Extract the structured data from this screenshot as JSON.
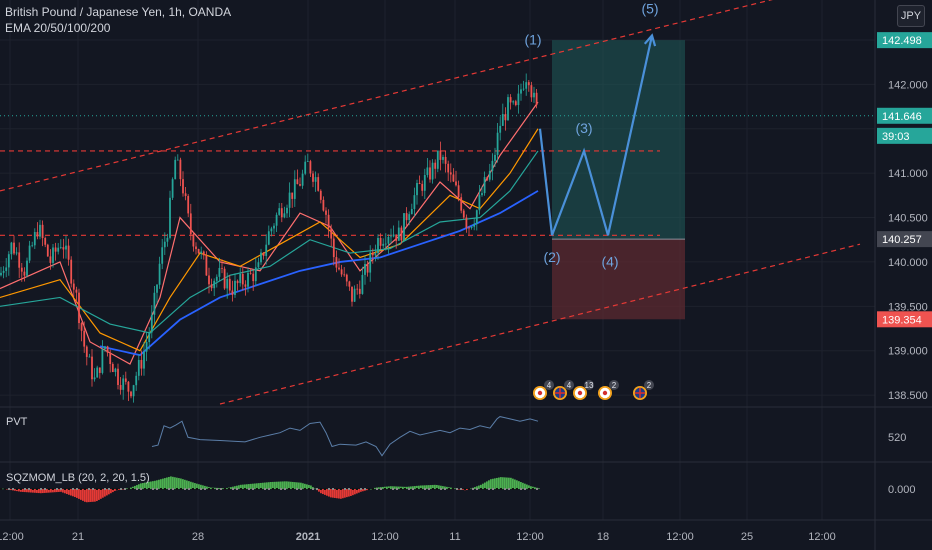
{
  "header": {
    "symbol_title": "British Pound / Japanese Yen, 1h, OANDA",
    "indicator_label": "EMA 20/50/100/200",
    "currency": "JPY"
  },
  "colors": {
    "background": "#131722",
    "grid": "#1e222d",
    "text": "#b2b5be",
    "up_candle": "#26a69a",
    "down_candle": "#ef5350",
    "wave_path": "#4a90d9",
    "channel": "#e53935",
    "ema20": "#ff6f6f",
    "ema50": "#ff9800",
    "ema100": "#26a69a",
    "ema200": "#2962ff",
    "target_zone": "#1f5b5a",
    "stop_zone": "#5c2a30",
    "pvt_line": "#5b7ea8",
    "mom_pos": "#4caf50",
    "mom_neg": "#e53935"
  },
  "chart_data": {
    "type": "candlestick",
    "title": "British Pound / Japanese Yen, 1h, OANDA",
    "y_axis": {
      "ticks": [
        138.5,
        139.0,
        139.5,
        140.0,
        140.5,
        141.0,
        141.5,
        142.0,
        142.5
      ],
      "tick_labels": [
        "138.500",
        "139.000",
        "139.500",
        "140.000",
        "140.500",
        "141.000",
        "",
        "142.000",
        ""
      ],
      "range": [
        138.4,
        142.95
      ]
    },
    "x_axis": {
      "tick_labels": [
        "12:00",
        "21",
        "28",
        "2021",
        "12:00",
        "11",
        "12:00",
        "18",
        "12:00",
        "25",
        "12:00"
      ]
    },
    "price_tags": [
      {
        "label": "142.498",
        "value": 142.498,
        "color": "#26a69a"
      },
      {
        "label": "141.646",
        "value": 141.646,
        "color": "#26a69a"
      },
      {
        "label": "39:03",
        "value": 141.42,
        "color": "#26a69a"
      },
      {
        "label": "140.257",
        "value": 140.257,
        "color": "#434651"
      },
      {
        "label": "139.354",
        "value": 139.354,
        "color": "#ef5350"
      }
    ],
    "current_price": 141.646,
    "price_path": [
      [
        0,
        139.85
      ],
      [
        12,
        140.2
      ],
      [
        25,
        139.9
      ],
      [
        38,
        140.4
      ],
      [
        50,
        140.0
      ],
      [
        62,
        140.25
      ],
      [
        75,
        139.7
      ],
      [
        85,
        139.0
      ],
      [
        95,
        138.65
      ],
      [
        105,
        139.05
      ],
      [
        118,
        138.7
      ],
      [
        130,
        138.55
      ],
      [
        142,
        138.9
      ],
      [
        152,
        139.35
      ],
      [
        160,
        140.0
      ],
      [
        168,
        140.4
      ],
      [
        175,
        141.15
      ],
      [
        182,
        140.9
      ],
      [
        190,
        140.35
      ],
      [
        200,
        140.1
      ],
      [
        210,
        139.8
      ],
      [
        220,
        139.85
      ],
      [
        232,
        139.7
      ],
      [
        245,
        139.8
      ],
      [
        258,
        139.9
      ],
      [
        268,
        140.3
      ],
      [
        278,
        140.55
      ],
      [
        290,
        140.75
      ],
      [
        300,
        140.9
      ],
      [
        308,
        141.1
      ],
      [
        318,
        140.9
      ],
      [
        326,
        140.55
      ],
      [
        334,
        140.05
      ],
      [
        342,
        139.85
      ],
      [
        352,
        139.6
      ],
      [
        360,
        139.75
      ],
      [
        368,
        139.95
      ],
      [
        378,
        140.25
      ],
      [
        390,
        140.35
      ],
      [
        400,
        140.3
      ],
      [
        410,
        140.65
      ],
      [
        420,
        140.85
      ],
      [
        430,
        141.0
      ],
      [
        440,
        141.2
      ],
      [
        450,
        140.95
      ],
      [
        460,
        140.7
      ],
      [
        468,
        140.4
      ],
      [
        476,
        140.55
      ],
      [
        484,
        140.85
      ],
      [
        492,
        141.05
      ],
      [
        500,
        141.55
      ],
      [
        508,
        141.75
      ],
      [
        516,
        141.7
      ],
      [
        522,
        142.0
      ],
      [
        528,
        142.15
      ],
      [
        532,
        141.9
      ],
      [
        538,
        141.65
      ]
    ],
    "ema_lines": [
      {
        "name": "EMA 20",
        "color": "#ff6f6f",
        "points": [
          [
            0,
            139.7
          ],
          [
            60,
            140.0
          ],
          [
            90,
            139.1
          ],
          [
            130,
            138.85
          ],
          [
            160,
            139.6
          ],
          [
            180,
            140.5
          ],
          [
            220,
            140.0
          ],
          [
            260,
            139.9
          ],
          [
            300,
            140.55
          ],
          [
            330,
            140.4
          ],
          [
            360,
            139.9
          ],
          [
            400,
            140.3
          ],
          [
            440,
            140.9
          ],
          [
            470,
            140.6
          ],
          [
            500,
            141.2
          ],
          [
            538,
            141.8
          ]
        ]
      },
      {
        "name": "EMA 50",
        "color": "#ff9800",
        "points": [
          [
            0,
            139.6
          ],
          [
            60,
            139.8
          ],
          [
            100,
            139.2
          ],
          [
            140,
            139.0
          ],
          [
            170,
            139.6
          ],
          [
            200,
            140.1
          ],
          [
            240,
            139.95
          ],
          [
            280,
            140.2
          ],
          [
            320,
            140.45
          ],
          [
            360,
            140.05
          ],
          [
            400,
            140.2
          ],
          [
            450,
            140.75
          ],
          [
            480,
            140.6
          ],
          [
            510,
            141.0
          ],
          [
            538,
            141.5
          ]
        ]
      },
      {
        "name": "EMA 100",
        "color": "#26a69a",
        "points": [
          [
            0,
            139.5
          ],
          [
            60,
            139.6
          ],
          [
            110,
            139.3
          ],
          [
            150,
            139.2
          ],
          [
            190,
            139.6
          ],
          [
            230,
            139.85
          ],
          [
            270,
            139.95
          ],
          [
            310,
            140.25
          ],
          [
            350,
            140.1
          ],
          [
            390,
            140.15
          ],
          [
            440,
            140.45
          ],
          [
            480,
            140.5
          ],
          [
            510,
            140.8
          ],
          [
            538,
            141.25
          ]
        ]
      },
      {
        "name": "EMA 200",
        "color": "#2962ff",
        "points": [
          [
            100,
            139.05
          ],
          [
            140,
            138.95
          ],
          [
            180,
            139.35
          ],
          [
            220,
            139.6
          ],
          [
            260,
            139.75
          ],
          [
            300,
            139.9
          ],
          [
            340,
            140.0
          ],
          [
            380,
            140.05
          ],
          [
            420,
            140.2
          ],
          [
            460,
            140.35
          ],
          [
            500,
            140.55
          ],
          [
            538,
            140.8
          ]
        ]
      }
    ],
    "horizontal_lines": [
      {
        "value": 141.25,
        "style": "dashed"
      },
      {
        "value": 140.3,
        "style": "dashed"
      }
    ],
    "channel_lines": [
      {
        "from": [
          0,
          140.8
        ],
        "to": [
          860,
          143.2
        ]
      },
      {
        "from": [
          220,
          138.4
        ],
        "to": [
          860,
          140.2
        ]
      }
    ],
    "position_tool": {
      "entry": 140.257,
      "target": 142.498,
      "stop": 139.354,
      "x_start": 552,
      "x_end": 685
    },
    "wave_path": {
      "points": [
        [
          540,
          141.5
        ],
        [
          552,
          140.3
        ],
        [
          584,
          141.25
        ],
        [
          608,
          140.3
        ],
        [
          652,
          142.55
        ]
      ],
      "labels": [
        {
          "text": "(1)",
          "x": 533,
          "y": 142.45
        },
        {
          "text": "(2)",
          "x": 552,
          "y": 140.0
        },
        {
          "text": "(3)",
          "x": 584,
          "y": 141.45
        },
        {
          "text": "(4)",
          "x": 610,
          "y": 139.95
        },
        {
          "text": "(5)",
          "x": 650,
          "y": 142.8
        }
      ]
    },
    "events": [
      {
        "flag": "jp",
        "count": "4",
        "x": 540
      },
      {
        "flag": "uk",
        "count": "4",
        "x": 560
      },
      {
        "flag": "jp",
        "count": "13",
        "x": 580
      },
      {
        "flag": "jp",
        "count": "2",
        "x": 605
      },
      {
        "flag": "uk",
        "count": "2",
        "x": 640
      }
    ],
    "pvt": {
      "label": "PVT",
      "axis_label": "520",
      "points": [
        [
          152,
          0.75
        ],
        [
          158,
          0.72
        ],
        [
          164,
          0.3
        ],
        [
          170,
          0.35
        ],
        [
          176,
          0.28
        ],
        [
          182,
          0.2
        ],
        [
          188,
          0.55
        ],
        [
          200,
          0.6
        ],
        [
          220,
          0.62
        ],
        [
          245,
          0.65
        ],
        [
          260,
          0.55
        ],
        [
          270,
          0.5
        ],
        [
          280,
          0.45
        ],
        [
          290,
          0.35
        ],
        [
          300,
          0.4
        ],
        [
          310,
          0.25
        ],
        [
          320,
          0.22
        ],
        [
          326,
          0.45
        ],
        [
          332,
          0.75
        ],
        [
          340,
          0.7
        ],
        [
          356,
          0.72
        ],
        [
          366,
          0.65
        ],
        [
          376,
          0.75
        ],
        [
          382,
          0.95
        ],
        [
          390,
          0.7
        ],
        [
          400,
          0.55
        ],
        [
          410,
          0.42
        ],
        [
          420,
          0.5
        ],
        [
          430,
          0.45
        ],
        [
          440,
          0.4
        ],
        [
          450,
          0.45
        ],
        [
          460,
          0.35
        ],
        [
          470,
          0.38
        ],
        [
          480,
          0.3
        ],
        [
          490,
          0.35
        ],
        [
          497,
          0.15
        ],
        [
          500,
          0.1
        ],
        [
          510,
          0.15
        ],
        [
          520,
          0.2
        ],
        [
          530,
          0.15
        ],
        [
          538,
          0.2
        ]
      ]
    },
    "momentum": {
      "label": "SQZMOM_LB (20, 2, 20, 1.5)",
      "axis_label": "0.000",
      "values": [
        [
          0,
          0.05
        ],
        [
          20,
          -0.2
        ],
        [
          40,
          -0.3
        ],
        [
          60,
          -0.2
        ],
        [
          75,
          -0.6
        ],
        [
          85,
          -0.95
        ],
        [
          95,
          -0.9
        ],
        [
          105,
          -0.5
        ],
        [
          115,
          -0.1
        ],
        [
          130,
          0.1
        ],
        [
          140,
          0.4
        ],
        [
          155,
          0.6
        ],
        [
          170,
          0.9
        ],
        [
          180,
          0.75
        ],
        [
          195,
          0.4
        ],
        [
          210,
          0.1
        ],
        [
          225,
          0.05
        ],
        [
          240,
          0.3
        ],
        [
          255,
          0.4
        ],
        [
          270,
          0.5
        ],
        [
          285,
          0.55
        ],
        [
          300,
          0.45
        ],
        [
          310,
          0.25
        ],
        [
          320,
          -0.3
        ],
        [
          330,
          -0.6
        ],
        [
          340,
          -0.7
        ],
        [
          350,
          -0.5
        ],
        [
          360,
          -0.2
        ],
        [
          375,
          0.1
        ],
        [
          390,
          0.2
        ],
        [
          405,
          0.15
        ],
        [
          420,
          0.25
        ],
        [
          435,
          0.3
        ],
        [
          450,
          0.1
        ],
        [
          465,
          -0.1
        ],
        [
          480,
          0.3
        ],
        [
          490,
          0.7
        ],
        [
          500,
          0.85
        ],
        [
          510,
          0.8
        ],
        [
          520,
          0.5
        ],
        [
          530,
          0.2
        ],
        [
          538,
          0.05
        ]
      ]
    }
  }
}
